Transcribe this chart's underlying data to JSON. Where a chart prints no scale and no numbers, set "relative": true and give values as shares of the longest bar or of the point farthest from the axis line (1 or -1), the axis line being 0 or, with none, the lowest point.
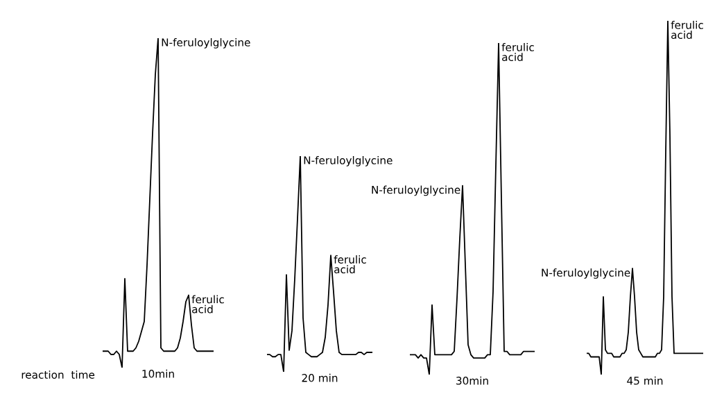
{
  "chart_data": [
    {
      "type": "line",
      "relative": true,
      "color": "#000000",
      "xlabel": "10min",
      "categories": [
        null,
        null,
        null,
        null,
        null,
        null,
        null,
        null,
        null,
        null,
        null,
        null,
        null,
        null,
        null,
        null,
        null,
        null,
        null,
        null,
        null,
        null,
        null,
        null,
        null,
        null,
        null,
        null,
        null,
        null,
        null,
        null,
        null,
        null,
        null,
        null,
        null,
        null,
        null,
        null,
        null
      ],
      "values": [
        0.05,
        0.05,
        0.05,
        0.04,
        0.04,
        0.05,
        0.04,
        0,
        0.27,
        0.05,
        0.05,
        0.05,
        0.06,
        0.08,
        0.11,
        0.14,
        0.31,
        0.51,
        0.71,
        0.89,
        1,
        0.06,
        0.05,
        0.05,
        0.05,
        0.05,
        0.05,
        0.06,
        0.09,
        0.14,
        0.2,
        0.22,
        0.13,
        0.06,
        0.05,
        0.05,
        0.05,
        0.05,
        0.05,
        0.05,
        0.05
      ],
      "annotations": [
        "N-feruloylglycine",
        "ferulic\nacid",
        "reaction  time"
      ]
    },
    {
      "type": "line",
      "relative": true,
      "color": "#000000",
      "xlabel": "20 min",
      "categories": [
        null,
        null,
        null,
        null,
        null,
        null,
        null,
        null,
        null,
        null,
        null,
        null,
        null,
        null,
        null,
        null,
        null,
        null,
        null,
        null,
        null,
        null,
        null,
        null,
        null,
        null,
        null,
        null,
        null,
        null,
        null,
        null,
        null,
        null,
        null,
        null,
        null,
        null,
        null
      ],
      "values": [
        0.08,
        0.08,
        0.07,
        0.07,
        0.08,
        0.08,
        0,
        0.45,
        0.1,
        0.19,
        0.43,
        0.71,
        1,
        0.25,
        0.09,
        0.08,
        0.07,
        0.07,
        0.07,
        0.08,
        0.09,
        0.16,
        0.31,
        0.54,
        0.37,
        0.19,
        0.09,
        0.08,
        0.08,
        0.08,
        0.08,
        0.08,
        0.08,
        0.09,
        0.09,
        0.08,
        0.09,
        0.09,
        0.09
      ],
      "annotations": [
        "N-feruloylglycine",
        "ferulic\nacid"
      ]
    },
    {
      "type": "line",
      "relative": true,
      "color": "#000000",
      "xlabel": "30min",
      "categories": [
        null,
        null,
        null,
        null,
        null,
        null,
        null,
        null,
        null,
        null,
        null,
        null,
        null,
        null,
        null,
        null,
        null,
        null,
        null,
        null,
        null,
        null,
        null,
        null,
        null,
        null,
        null,
        null,
        null,
        null,
        null,
        null,
        null,
        null,
        null,
        null,
        null,
        null,
        null,
        null,
        null,
        null,
        null,
        null,
        null,
        null
      ],
      "values": [
        0.06,
        0.06,
        0.06,
        0.05,
        0.06,
        0.05,
        0.05,
        0,
        0.21,
        0.06,
        0.06,
        0.06,
        0.06,
        0.06,
        0.06,
        0.06,
        0.07,
        0.23,
        0.41,
        0.57,
        0.33,
        0.09,
        0.06,
        0.05,
        0.05,
        0.05,
        0.05,
        0.05,
        0.06,
        0.06,
        0.25,
        0.63,
        1,
        0.53,
        0.07,
        0.07,
        0.06,
        0.06,
        0.06,
        0.06,
        0.06,
        0.07,
        0.07,
        0.07,
        0.07,
        0.07
      ],
      "annotations": [
        "N-feruloylglycine",
        "ferulic\nacid"
      ]
    },
    {
      "type": "line",
      "relative": true,
      "color": "#000000",
      "xlabel": "45 min",
      "categories": [
        null,
        null,
        null,
        null,
        null,
        null,
        null,
        null,
        null,
        null,
        null,
        null,
        null,
        null,
        null,
        null,
        null,
        null,
        null,
        null,
        null,
        null,
        null,
        null,
        null,
        null,
        null,
        null,
        null,
        null,
        null,
        null,
        null,
        null,
        null,
        null,
        null,
        null,
        null,
        null,
        null,
        null,
        null,
        null,
        null,
        null,
        null,
        null,
        null,
        null,
        null,
        null,
        null,
        null,
        null,
        null,
        null
      ],
      "values": [
        0.06,
        0.06,
        0.05,
        0.05,
        0.05,
        0.05,
        0.05,
        0,
        0.22,
        0.07,
        0.06,
        0.06,
        0.06,
        0.05,
        0.05,
        0.05,
        0.05,
        0.06,
        0.06,
        0.07,
        0.12,
        0.22,
        0.3,
        0.22,
        0.12,
        0.07,
        0.06,
        0.05,
        0.05,
        0.05,
        0.05,
        0.05,
        0.05,
        0.05,
        0.06,
        0.06,
        0.07,
        0.22,
        0.63,
        1,
        0.68,
        0.22,
        0.06,
        0.06,
        0.06,
        0.06,
        0.06,
        0.06,
        0.06,
        0.06,
        0.06,
        0.06,
        0.06,
        0.06,
        0.06,
        0.06,
        0.06
      ],
      "annotations": [
        "N-feruloylglycine",
        "ferulic\nacid"
      ]
    }
  ]
}
